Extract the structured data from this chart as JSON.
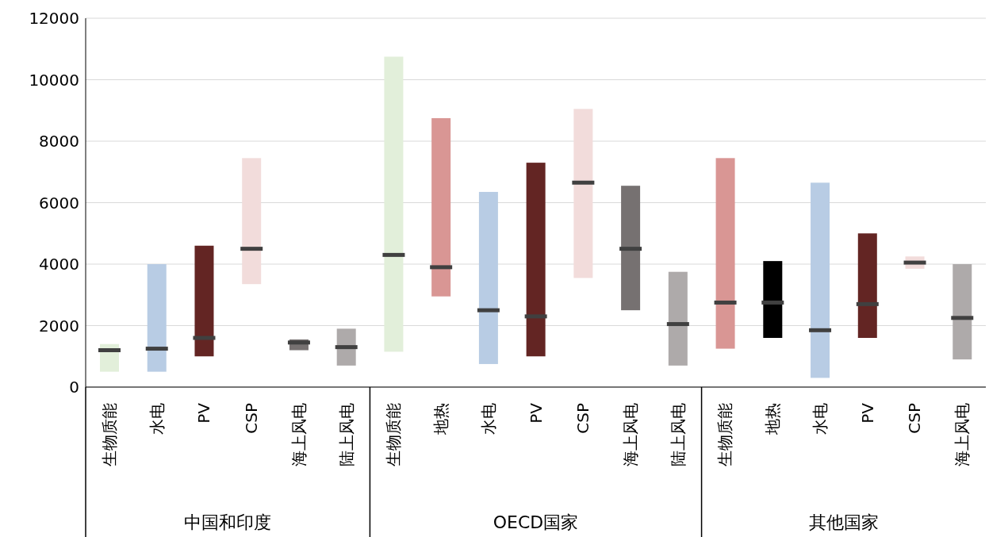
{
  "chart_data": {
    "type": "box",
    "categories": [
      "生物质能",
      "水电",
      "PV",
      "CSP",
      "海上风电",
      "陆上风电",
      "生物质能",
      "地热",
      "水电",
      "PV",
      "CSP",
      "海上风电",
      "陆上风电",
      "生物质能",
      "地热",
      "水电",
      "PV",
      "CSP",
      "海上风电"
    ],
    "boxes": [
      {
        "low": 500,
        "q1": 500,
        "median": 1200,
        "q3": 1400,
        "high": 1400
      },
      {
        "low": 500,
        "q1": 500,
        "median": 1250,
        "q3": 4000,
        "high": 4000
      },
      {
        "low": 1000,
        "q1": 1000,
        "median": 1600,
        "q3": 4600,
        "high": 4600
      },
      {
        "low": 3350,
        "q1": 3350,
        "median": 4500,
        "q3": 7450,
        "high": 7450
      },
      {
        "low": 1200,
        "q1": 1200,
        "median": 1450,
        "q3": 1550,
        "high": 1550
      },
      {
        "low": 700,
        "q1": 700,
        "median": 1300,
        "q3": 1900,
        "high": 1900
      },
      {
        "low": 1150,
        "q1": 1150,
        "median": 4300,
        "q3": 10750,
        "high": 10750
      },
      {
        "low": 2950,
        "q1": 2950,
        "median": 3900,
        "q3": 8750,
        "high": 8750
      },
      {
        "low": 750,
        "q1": 750,
        "median": 2500,
        "q3": 6350,
        "high": 6350
      },
      {
        "low": 1000,
        "q1": 1000,
        "median": 2300,
        "q3": 7300,
        "high": 7300
      },
      {
        "low": 3550,
        "q1": 3550,
        "median": 6650,
        "q3": 9050,
        "high": 9050
      },
      {
        "low": 2500,
        "q1": 2500,
        "median": 4500,
        "q3": 6550,
        "high": 6550
      },
      {
        "low": 700,
        "q1": 700,
        "median": 2050,
        "q3": 3750,
        "high": 3750
      },
      {
        "low": 1250,
        "q1": 1250,
        "median": 2750,
        "q3": 7450,
        "high": 7450
      },
      {
        "low": 1600,
        "q1": 1600,
        "median": 2750,
        "q3": 4100,
        "high": 4100
      },
      {
        "low": 300,
        "q1": 300,
        "median": 1850,
        "q3": 6650,
        "high": 6650
      },
      {
        "low": 1600,
        "q1": 1600,
        "median": 2700,
        "q3": 5000,
        "high": 5000
      },
      {
        "low": 3850,
        "q1": 3850,
        "median": 4050,
        "q3": 4250,
        "high": 4250
      },
      {
        "low": 900,
        "q1": 900,
        "median": 2250,
        "q3": 4000,
        "high": 4000
      }
    ],
    "colors": [
      "#e2efda",
      "#b8cce4",
      "#632523",
      "#f2dcdb",
      "#767171",
      "#aeaaaa",
      "#e2efda",
      "#d99694",
      "#b8cce4",
      "#632523",
      "#f2dcdb",
      "#767171",
      "#aeaaaa",
      "#d99694",
      "#000000",
      "#b8cce4",
      "#632523",
      "#f2dcdb",
      "#aeaaaa"
    ],
    "annotations": [
      "中国和印度",
      "OECD国家",
      "其他国家"
    ],
    "ylim": [
      0,
      12000
    ],
    "yticks": [
      0,
      2000,
      4000,
      6000,
      8000,
      10000,
      12000
    ],
    "grid": "y"
  }
}
